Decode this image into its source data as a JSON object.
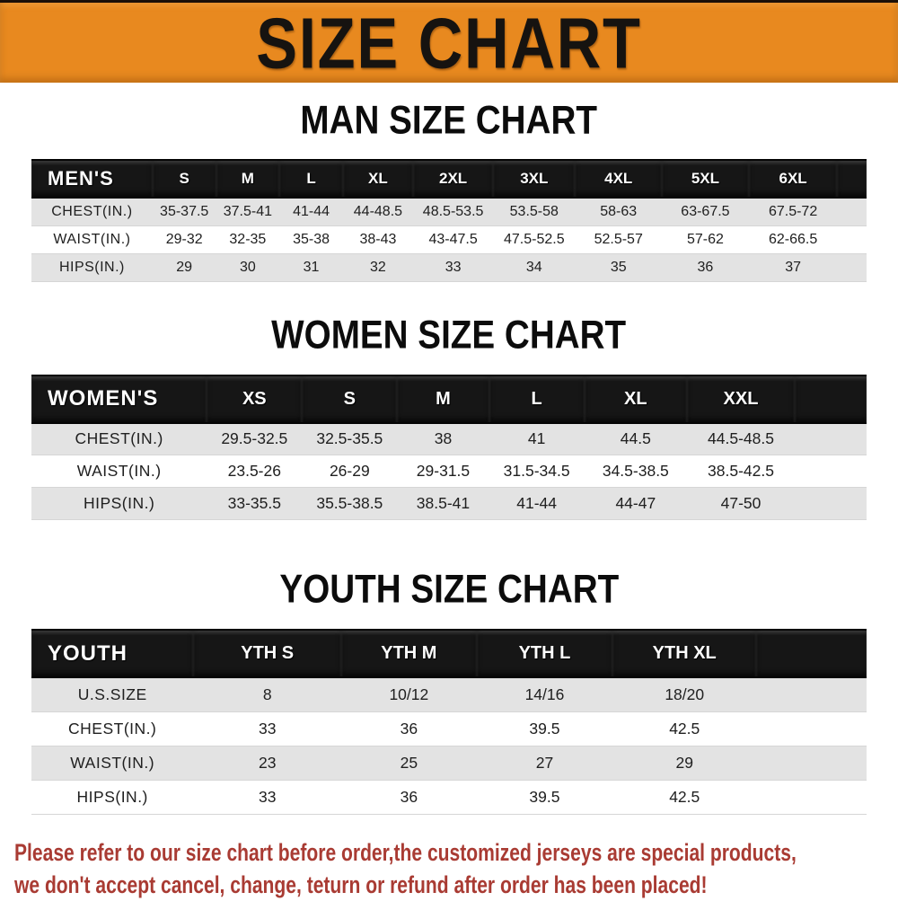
{
  "banner": {
    "title": "SIZE CHART",
    "bg_color": "#E8891F",
    "text_color": "#161310"
  },
  "sections": [
    {
      "heading": "MAN SIZE CHART"
    },
    {
      "heading": "WOMEN SIZE CHART"
    },
    {
      "heading": "YOUTH SIZE CHART"
    }
  ],
  "chart_data": [
    {
      "type": "table",
      "title": "MAN SIZE CHART",
      "corner_label": "MEN'S",
      "columns": [
        "S",
        "M",
        "L",
        "XL",
        "2XL",
        "3XL",
        "4XL",
        "5XL",
        "6XL"
      ],
      "rows": [
        {
          "label": "CHEST(IN.)",
          "values": [
            "35-37.5",
            "37.5-41",
            "41-44",
            "44-48.5",
            "48.5-53.5",
            "53.5-58",
            "58-63",
            "63-67.5",
            "67.5-72"
          ]
        },
        {
          "label": "WAIST(IN.)",
          "values": [
            "29-32",
            "32-35",
            "35-38",
            "38-43",
            "43-47.5",
            "47.5-52.5",
            "52.5-57",
            "57-62",
            "62-66.5"
          ]
        },
        {
          "label": "HIPS(IN.)",
          "values": [
            "29",
            "30",
            "31",
            "32",
            "33",
            "34",
            "35",
            "36",
            "37"
          ]
        }
      ]
    },
    {
      "type": "table",
      "title": "WOMEN SIZE CHART",
      "corner_label": "WOMEN'S",
      "columns": [
        "XS",
        "S",
        "M",
        "L",
        "XL",
        "XXL"
      ],
      "rows": [
        {
          "label": "CHEST(IN.)",
          "values": [
            "29.5-32.5",
            "32.5-35.5",
            "38",
            "41",
            "44.5",
            "44.5-48.5"
          ]
        },
        {
          "label": "WAIST(IN.)",
          "values": [
            "23.5-26",
            "26-29",
            "29-31.5",
            "31.5-34.5",
            "34.5-38.5",
            "38.5-42.5"
          ]
        },
        {
          "label": "HIPS(IN.)",
          "values": [
            "33-35.5",
            "35.5-38.5",
            "38.5-41",
            "41-44",
            "44-47",
            "47-50"
          ]
        }
      ]
    },
    {
      "type": "table",
      "title": "YOUTH SIZE CHART",
      "corner_label": "YOUTH",
      "columns": [
        "YTH S",
        "YTH M",
        "YTH L",
        "YTH XL"
      ],
      "rows": [
        {
          "label": "U.S.SIZE",
          "values": [
            "8",
            "10/12",
            "14/16",
            "18/20"
          ]
        },
        {
          "label": "CHEST(IN.)",
          "values": [
            "33",
            "36",
            "39.5",
            "42.5"
          ]
        },
        {
          "label": "WAIST(IN.)",
          "values": [
            "23",
            "25",
            "27",
            "29"
          ]
        },
        {
          "label": "HIPS(IN.)",
          "values": [
            "33",
            "36",
            "39.5",
            "42.5"
          ]
        }
      ]
    }
  ],
  "disclaimer": {
    "color": "#A93B33",
    "lines": [
      "Please refer to our size chart before order,the customized jerseys are special products,",
      "we don't accept cancel, change, teturn or refund after order has been placed!"
    ]
  },
  "colors": {
    "banner_bg": "#E8891F",
    "header_bar": "#161616",
    "stripe_row": "#E3E3E3",
    "disclaimer_red": "#A93B33"
  }
}
